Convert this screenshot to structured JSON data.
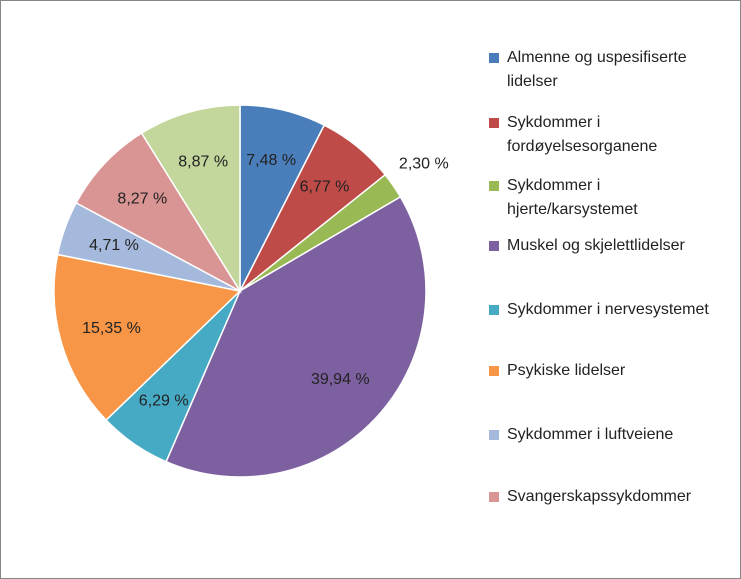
{
  "chart_data": {
    "type": "pie",
    "categories": [
      "Almenne og uspesifiserte lidelser",
      "Sykdommer i fordøyelsesorganene",
      "Sykdommer i hjerte/karsystemet",
      "Muskel og skjelettlidelser",
      "Sykdommer i nervesystemet",
      "Psykiske lidelser",
      "Sykdommer i luftveiene",
      "Svangerskapssykdommer",
      null
    ],
    "values": [
      7.48,
      6.77,
      2.3,
      39.94,
      6.29,
      15.35,
      4.71,
      8.27,
      8.87
    ],
    "value_labels": [
      "7,48 %",
      "6,77 %",
      "2,30 %",
      "39,94 %",
      "6,29 %",
      "15,35 %",
      "4,71 %",
      "8,27 %",
      "8,87 %"
    ],
    "colors": [
      "#4a7ebb",
      "#be4b48",
      "#98b954",
      "#7d60a0",
      "#46aac5",
      "#f79646",
      "#a5b9dc",
      "#d99594",
      "#c3d69b"
    ],
    "legend": "right"
  }
}
